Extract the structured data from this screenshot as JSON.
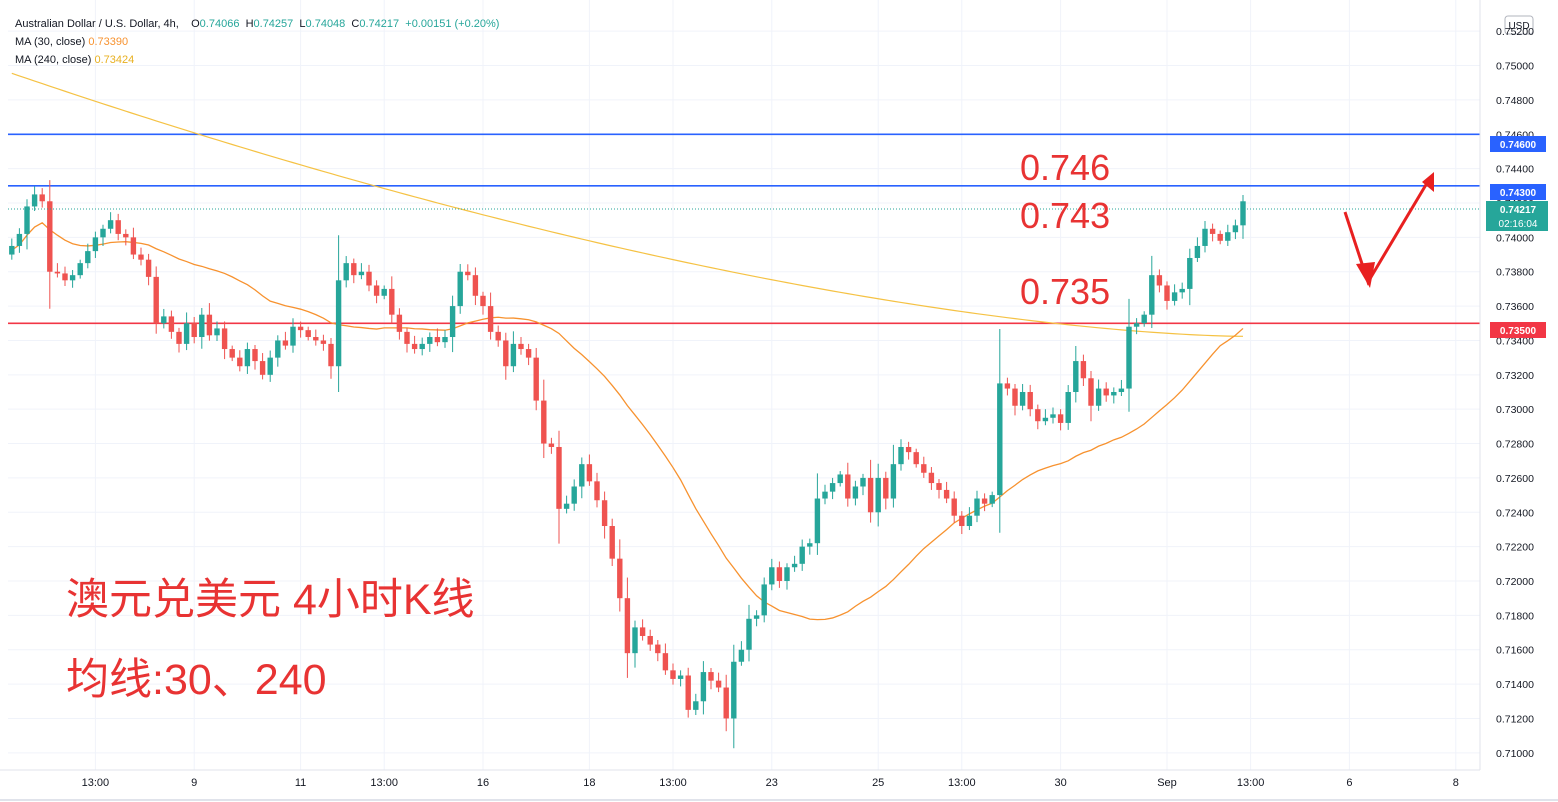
{
  "legend": {
    "title": "Australian Dollar / U.S. Dollar, 4h,",
    "o_label": "O",
    "o_val": "0.74066",
    "h_label": "H",
    "h_val": "0.74257",
    "l_label": "L",
    "l_val": "0.74048",
    "c_label": "C",
    "c_val": "0.74217",
    "change": "+0.00151 (+0.20%)",
    "ma30_label": "MA (30, close)",
    "ma30_val": "0.73390",
    "ma240_label": "MA (240, close)",
    "ma240_val": "0.73424"
  },
  "currency": "USD",
  "annotations": {
    "level_746": "0.746",
    "level_743": "0.743",
    "level_735": "0.735",
    "caption_line1": "澳元兑美元 4小时K线",
    "caption_line2": "均线:30、240"
  },
  "price_tags": {
    "line_746": "0.74600",
    "line_743": "0.74300",
    "current": "0.74217",
    "countdown": "02:16:04",
    "line_735": "0.73500"
  },
  "colors": {
    "up": "#26a69a",
    "down": "#ef5350",
    "ma30": "#f7922f",
    "ma240": "#f5c244",
    "hline_blue": "#2962ff",
    "hline_red": "#f23645",
    "annotation": "#e83333"
  },
  "chart_data": {
    "type": "candlestick",
    "timeframe": "4h",
    "ylim": [
      0.709,
      0.753
    ],
    "y_ticks": [
      "0.75200",
      "0.75000",
      "0.74800",
      "0.74600",
      "0.74400",
      "0.74200",
      "0.74000",
      "0.73800",
      "0.73600",
      "0.73400",
      "0.73200",
      "0.73000",
      "0.72800",
      "0.72600",
      "0.72400",
      "0.72200",
      "0.72000",
      "0.71800",
      "0.71600",
      "0.71400",
      "0.71200",
      "0.71000"
    ],
    "x_ticks": [
      {
        "label": "13:00",
        "index": 11
      },
      {
        "label": "9",
        "index": 24
      },
      {
        "label": "11",
        "index": 38
      },
      {
        "label": "13:00",
        "index": 49
      },
      {
        "label": "16",
        "index": 62
      },
      {
        "label": "18",
        "index": 76
      },
      {
        "label": "13:00",
        "index": 87
      },
      {
        "label": "23",
        "index": 100
      },
      {
        "label": "25",
        "index": 114
      },
      {
        "label": "13:00",
        "index": 125
      },
      {
        "label": "30",
        "index": 138
      },
      {
        "label": "Sep",
        "index": 152
      },
      {
        "label": "13:00",
        "index": 163
      },
      {
        "label": "6",
        "index": 176
      },
      {
        "label": "8",
        "index": 190
      }
    ],
    "hlines": [
      {
        "value": 0.746,
        "color": "#2962ff"
      },
      {
        "value": 0.743,
        "color": "#2962ff"
      },
      {
        "value": 0.735,
        "color": "#f23645"
      }
    ],
    "close_close": [
      0.739,
      0.7395,
      0.7402,
      0.7418,
      0.7425,
      0.7421,
      0.738,
      0.7379,
      0.7375,
      0.7378,
      0.7385,
      0.7392,
      0.74,
      0.7405,
      0.741,
      0.7402,
      0.74,
      0.739,
      0.7387,
      0.7377,
      0.735,
      0.7354,
      0.7345,
      0.7338,
      0.735,
      0.7342,
      0.7355,
      0.7343,
      0.7347,
      0.7335,
      0.733,
      0.7325,
      0.7335,
      0.7328,
      0.732,
      0.733,
      0.734,
      0.7337,
      0.7348,
      0.7346,
      0.7342,
      0.734,
      0.7338,
      0.7325,
      0.7375,
      0.7385,
      0.7378,
      0.738,
      0.7372,
      0.7366,
      0.737,
      0.7355,
      0.7345,
      0.7338,
      0.7335,
      0.7338,
      0.7342,
      0.7339,
      0.7342,
      0.736,
      0.738,
      0.7378,
      0.7366,
      0.736,
      0.7345,
      0.734,
      0.7325,
      0.7338,
      0.7335,
      0.733,
      0.7305,
      0.728,
      0.7278,
      0.7242,
      0.7245,
      0.7255,
      0.7268,
      0.7258,
      0.7247,
      0.7232,
      0.7213,
      0.719,
      0.7158,
      0.7173,
      0.7168,
      0.7163,
      0.7158,
      0.7148,
      0.7143,
      0.7145,
      0.7125,
      0.713,
      0.7147,
      0.7142,
      0.7138,
      0.712,
      0.7153,
      0.716,
      0.7178,
      0.718,
      0.7198,
      0.7208,
      0.72,
      0.7208,
      0.721,
      0.722,
      0.7222,
      0.7248,
      0.7252,
      0.7257,
      0.7262,
      0.7248,
      0.7255,
      0.726,
      0.724,
      0.726,
      0.7248,
      0.7268,
      0.7278,
      0.7275,
      0.7268,
      0.7263,
      0.7257,
      0.7253,
      0.7248,
      0.7238,
      0.7232,
      0.7238,
      0.7248,
      0.7245,
      0.725,
      0.7315,
      0.7312,
      0.7302,
      0.731,
      0.73,
      0.7293,
      0.7295,
      0.7297,
      0.7292,
      0.731,
      0.7328,
      0.7318,
      0.7302,
      0.7312,
      0.7308,
      0.731,
      0.7312,
      0.7348,
      0.735,
      0.7355,
      0.7378,
      0.7372,
      0.7363,
      0.7368,
      0.737,
      0.7388,
      0.7395,
      0.7405,
      0.7402,
      0.7398,
      0.7403,
      0.7407,
      0.7421
    ]
  }
}
